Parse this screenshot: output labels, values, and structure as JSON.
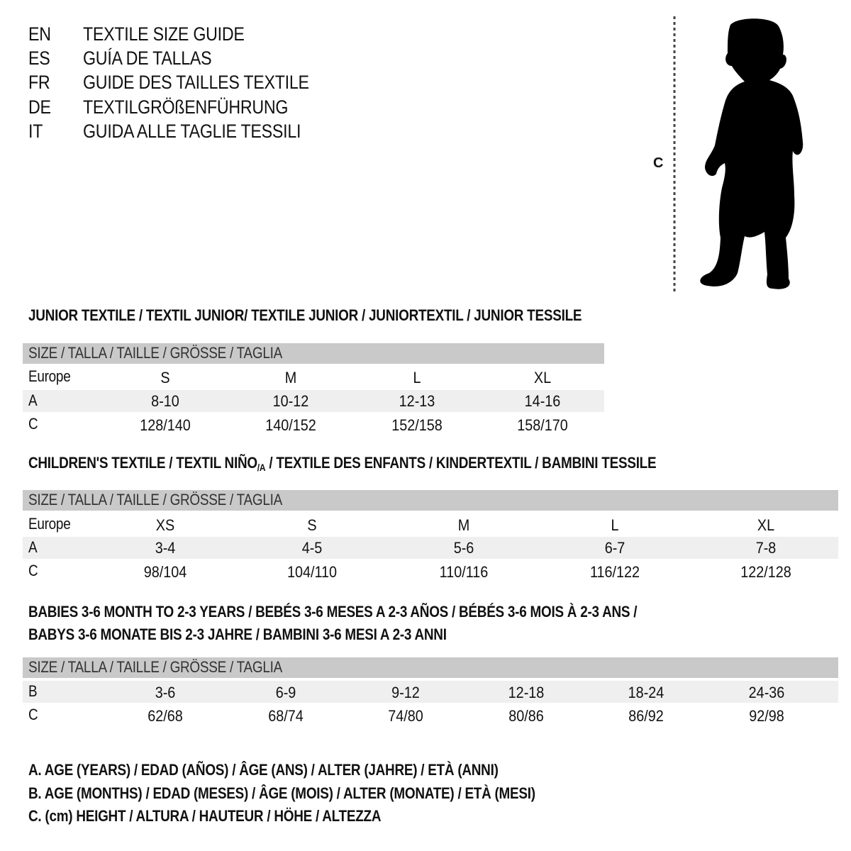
{
  "languages": [
    {
      "code": "EN",
      "label": "TEXTILE SIZE GUIDE"
    },
    {
      "code": "ES",
      "label": "GUÍA DE TALLAS"
    },
    {
      "code": "FR",
      "label": "GUIDE DES TAILLES TEXTILE"
    },
    {
      "code": "DE",
      "label": "TEXTILGRÖßENFÜHRUNG"
    },
    {
      "code": "IT",
      "label": "GUIDA ALLE TAGLIE TESSILI"
    }
  ],
  "figure": {
    "measure_label": "C",
    "icon": "child-silhouette"
  },
  "header_label": "SIZE / TALLA / TAILLE / GRÖSSE / TAGLIA",
  "junior": {
    "title": "JUNIOR TEXTILE / TEXTIL JUNIOR/ TEXTILE JUNIOR / JUNIORTEXTIL / JUNIOR TESSILE",
    "rows": [
      {
        "label": "Europe",
        "values": [
          "S",
          "M",
          "L",
          "XL"
        ]
      },
      {
        "label": "A",
        "values": [
          "8-10",
          "10-12",
          "12-13",
          "14-16"
        ]
      },
      {
        "label": "C",
        "values": [
          "128/140",
          "140/152",
          "152/158",
          "158/170"
        ]
      }
    ]
  },
  "children": {
    "title_before": "CHILDREN'S TEXTILE / TEXTIL NIÑO",
    "title_sub": "/A",
    "title_after": " / TEXTILE DES ENFANTS / KINDERTEXTIL / BAMBINI TESSILE",
    "rows": [
      {
        "label": "Europe",
        "values": [
          "XS",
          "S",
          "M",
          "L",
          "XL"
        ]
      },
      {
        "label": "A",
        "values": [
          "3-4",
          "4-5",
          "5-6",
          "6-7",
          "7-8"
        ]
      },
      {
        "label": "C",
        "values": [
          "98/104",
          "104/110",
          "110/116",
          "116/122",
          "122/128"
        ]
      }
    ]
  },
  "babies": {
    "title_line1": "BABIES 3-6 MONTH TO 2-3 YEARS / BEBÉS 3-6 MESES A 2-3 AÑOS / BÉBÉS 3-6 MOIS À 2-3 ANS /",
    "title_line2": "BABYS 3-6 MONATE BIS 2-3 JAHRE / BAMBINI 3-6 MESI A 2-3 ANNI",
    "rows": [
      {
        "label": "B",
        "values": [
          "3-6",
          "6-9",
          "9-12",
          "12-18",
          "18-24",
          "24-36"
        ]
      },
      {
        "label": "C",
        "values": [
          "62/68",
          "68/74",
          "74/80",
          "80/86",
          "86/92",
          "92/98"
        ]
      }
    ]
  },
  "legend": [
    "A. AGE (YEARS) / EDAD (AÑOS) / ÂGE (ANS) / ALTER (JAHRE) / ETÀ (ANNI)",
    "B. AGE (MONTHS) / EDAD (MESES) / ÂGE (MOIS) / ALTER (MONATE) / ETÀ (MESI)",
    "C. (cm) HEIGHT / ALTURA / HAUTEUR / HÖHE / ALTEZZA"
  ],
  "colors": {
    "header_bar": "#c9c9c9",
    "row_shade": "#efefef",
    "text": "#111111"
  }
}
